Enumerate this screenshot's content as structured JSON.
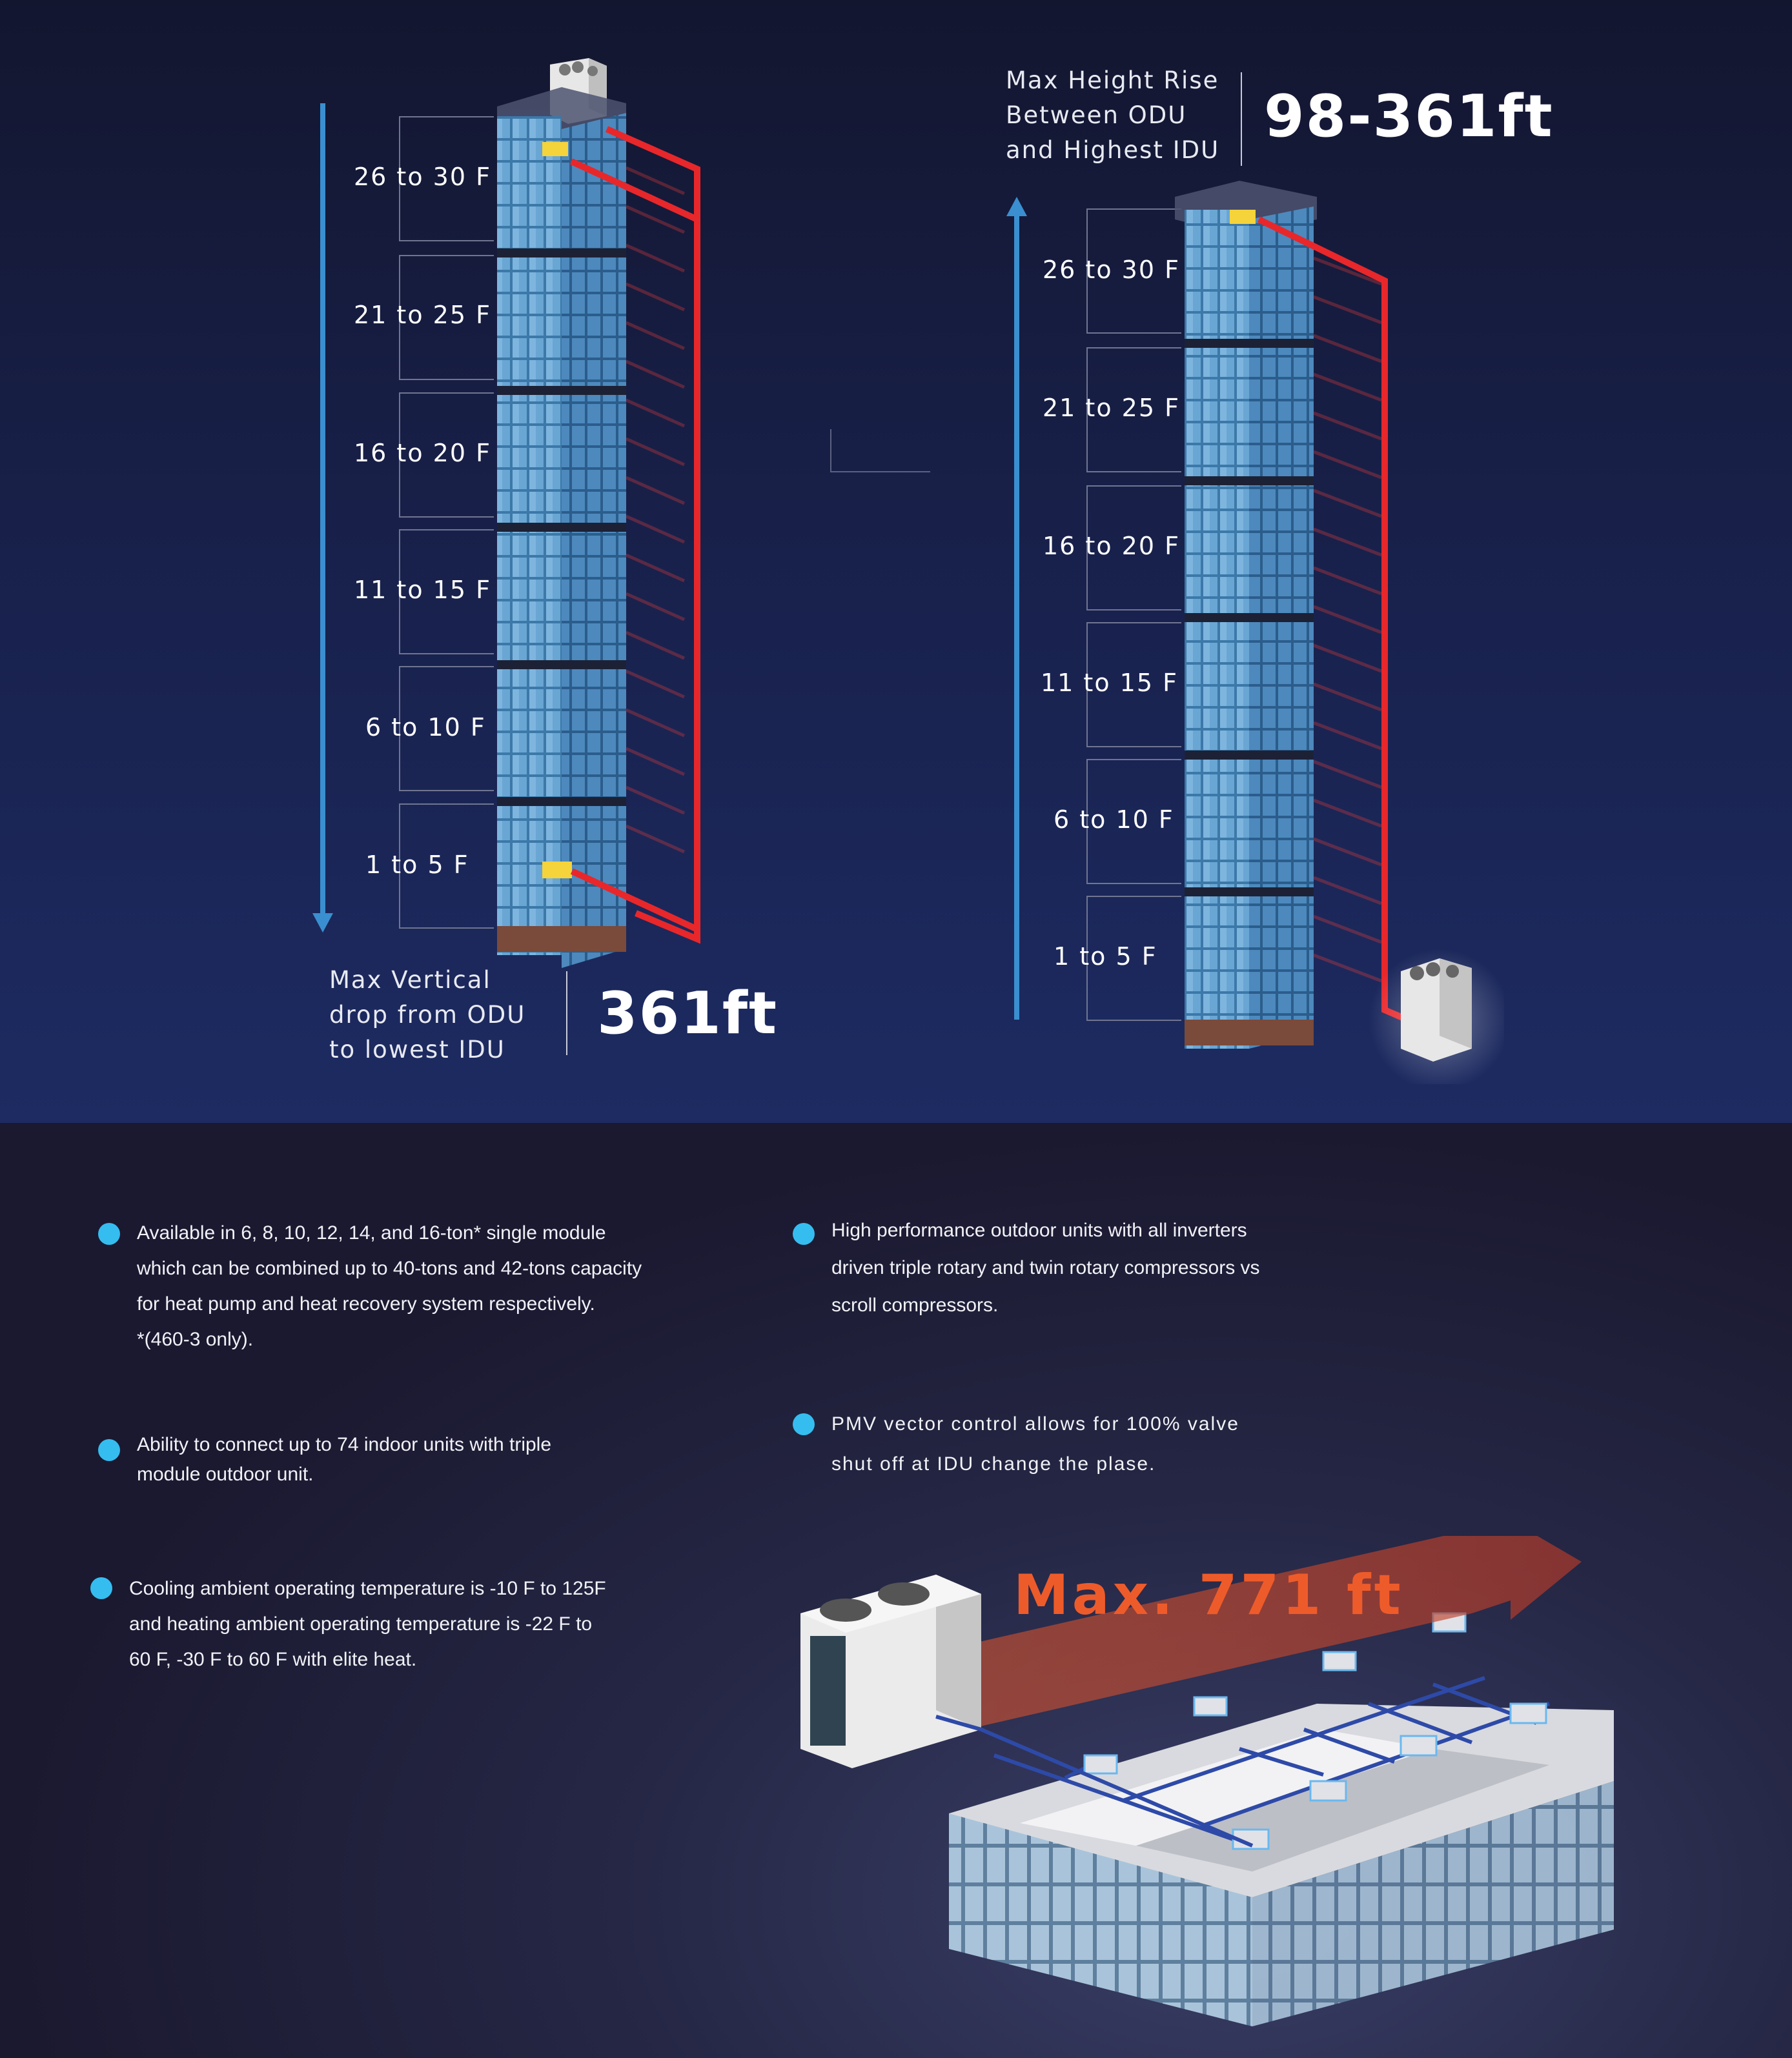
{
  "left_diagram": {
    "floors": [
      "26 to 30 F",
      "21 to 25 F",
      "16 to 20 F",
      "11 to 15 F",
      "6 to 10 F",
      "1 to 5 F"
    ],
    "caption_lines": [
      "Max Vertical",
      "drop from ODU",
      "to lowest IDU"
    ],
    "value": "361ft"
  },
  "right_diagram": {
    "floors": [
      "26 to 30 F",
      "21 to 25 F",
      "16 to 20 F",
      "11 to 15 F",
      "6 to 10 F",
      "1 to 5 F"
    ],
    "caption_lines": [
      "Max Height Rise",
      "Between ODU",
      "and Highest IDU"
    ],
    "value": "98-361ft"
  },
  "features_left": [
    {
      "lines": [
        "Available in 6, 8, 10, 12, 14, and 16-ton* single module",
        "which can be combined up to 40-tons and 42-tons capacity",
        "for heat pump and heat recovery system respectively.",
        "*(460-3 only)."
      ]
    },
    {
      "lines": [
        "Ability to connect up to 74 indoor units with triple",
        "module outdoor unit."
      ]
    },
    {
      "lines": [
        "Cooling ambient operating temperature is -10 F to 125F",
        "and heating ambient operating temperature is -22 F to",
        "60 F, -30 F to 60 F with elite heat."
      ]
    }
  ],
  "features_right": [
    {
      "lines": [
        "High performance outdoor units with all inverters",
        "driven triple rotary and twin rotary compressors vs",
        "scroll compressors."
      ]
    },
    {
      "lines": [
        "PMV vector control allows for 100% valve",
        "shut off at IDU change the plase."
      ]
    }
  ],
  "piping_diagram": {
    "label": "Max. 771 ft"
  },
  "colors": {
    "accent_blue": "#35bdf0",
    "pipe_red": "#e8272b",
    "max_orange": "#ee5b2a",
    "arrow_blue": "#3a8fd0"
  }
}
